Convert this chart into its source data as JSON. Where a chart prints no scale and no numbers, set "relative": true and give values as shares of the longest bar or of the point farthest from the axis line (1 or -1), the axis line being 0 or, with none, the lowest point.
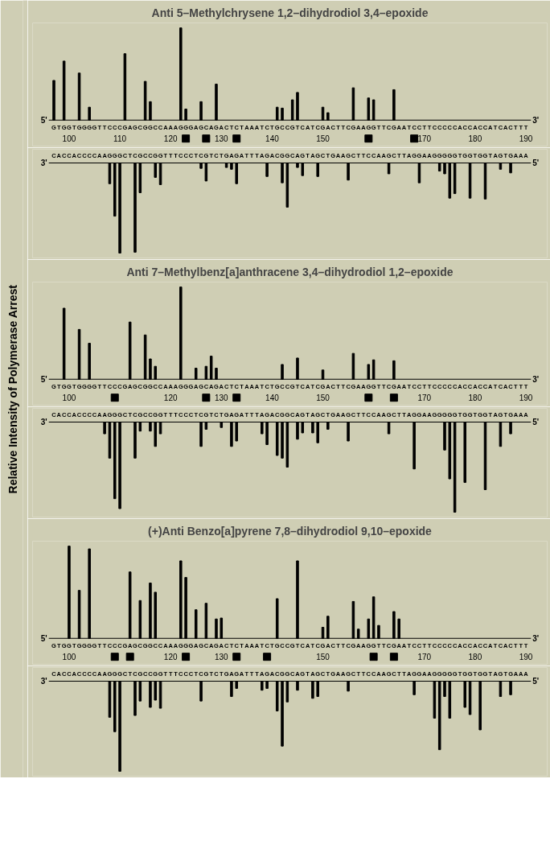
{
  "chart_data": [
    {
      "type": "bar",
      "title": "Anti 5–Methylchrysene 1,2–dihydrodiol 3,4–epoxide",
      "relative": true,
      "grid": false,
      "tick_labels": "x",
      "xlim": [
        96,
        191
      ],
      "xticks": [
        100,
        110,
        120,
        130,
        140,
        150,
        170,
        180,
        190
      ],
      "annotations": [
        "5'",
        "GTGGTGGGGTTCCCGAGCGGCCAAAGGGAGCAGACTCTAAATCTGCCGTCATCGACTTCGAAGGTTCGAATCCTTCCCCCACCACCATCACTTT",
        "3'"
      ],
      "series": [
        {
          "color": "#000000",
          "x": [
            97,
            99,
            102,
            104,
            111,
            115,
            116,
            122,
            123,
            126,
            129,
            141,
            142,
            144,
            145,
            150,
            151,
            156,
            159,
            160,
            164
          ],
          "values": [
            0.43,
            0.64,
            0.51,
            0.14,
            0.72,
            0.42,
            0.2,
            1,
            0.12,
            0.2,
            0.39,
            0.14,
            0.13,
            0.22,
            0.3,
            0.14,
            0.08,
            0.35,
            0.24,
            0.22,
            0.33
          ]
        },
        {
          "type": "scatter",
          "marker": "square",
          "color": "#000000",
          "x": [
            123,
            127,
            133,
            159,
            168
          ],
          "values": [
            -0.2,
            -0.2,
            -0.2,
            -0.2,
            -0.2
          ]
        }
      ]
    },
    {
      "type": "bar",
      "relative": true,
      "grid": false,
      "tick_labels": false,
      "xlim": [
        96,
        191
      ],
      "annotations": [
        "3'",
        "CACCACCCCAAGGGCTCGCCGGTTTCCCTCGTCTGAGATTTAGACGGCAGTAGCTGAAGCTTCCAAGCTTAGGAAGGGGGTGGTGGTAGTGAAA",
        "5'"
      ],
      "series": [
        {
          "color": "#000000",
          "x": [
            108,
            109,
            110,
            113,
            114,
            117,
            118,
            126,
            127,
            131,
            132,
            133,
            139,
            142,
            143,
            145,
            146,
            149,
            155,
            163,
            169,
            173,
            174,
            175,
            176,
            179,
            182,
            185,
            187
          ],
          "values": [
            -0.23,
            -0.59,
            -1,
            -0.99,
            -0.33,
            -0.16,
            -0.24,
            -0.06,
            -0.2,
            -0.05,
            -0.07,
            -0.23,
            -0.15,
            -0.22,
            -0.49,
            -0.05,
            -0.14,
            -0.15,
            -0.19,
            -0.12,
            -0.22,
            -0.09,
            -0.12,
            -0.39,
            -0.34,
            -0.39,
            -0.4,
            -0.07,
            -0.11
          ]
        }
      ]
    },
    {
      "type": "bar",
      "title": "Anti 7–Methylbenz[a]anthracene 3,4–dihydrodiol 1,2–epoxide",
      "ylabel": "Relative Intensity of Polymerase Arrest",
      "relative": true,
      "grid": false,
      "tick_labels": "x",
      "xlim": [
        96,
        191
      ],
      "xticks": [
        100,
        120,
        130,
        140,
        150,
        170,
        180,
        190
      ],
      "annotations": [
        "5'",
        "GTGGTGGGGTTCCCGAGCGGCCAAAGGGAGCAGACTCTAAATCTGCCGTCATCGACTTCGAAGGTTCGAATCCTTCCCCCACCACCATCACTTT",
        "3'"
      ],
      "series": [
        {
          "color": "#000000",
          "x": [
            99,
            102,
            104,
            112,
            115,
            116,
            117,
            122,
            125,
            127,
            128,
            129,
            142,
            145,
            150,
            156,
            159,
            160,
            164
          ],
          "values": [
            0.77,
            0.54,
            0.39,
            0.62,
            0.48,
            0.22,
            0.14,
            1,
            0.12,
            0.14,
            0.25,
            0.12,
            0.16,
            0.23,
            0.1,
            0.28,
            0.16,
            0.21,
            0.2
          ]
        },
        {
          "type": "scatter",
          "marker": "square",
          "color": "#000000",
          "x": [
            109,
            127,
            133,
            159,
            164
          ],
          "values": [
            -0.2,
            -0.2,
            -0.2,
            -0.2,
            -0.2
          ]
        }
      ]
    },
    {
      "type": "bar",
      "relative": true,
      "grid": false,
      "tick_labels": false,
      "xlim": [
        96,
        191
      ],
      "annotations": [
        "3'",
        "CACCACCCCAAGGGCTCGCCGGTTTCCCTCGTCTGAGATTTAGACGGCAGTAGCTGAAGCTTCCAAGCTTAGGAAGGGGGTGGTGGTAGTGAAA",
        "5'"
      ],
      "series": [
        {
          "color": "#000000",
          "x": [
            107,
            108,
            109,
            110,
            113,
            114,
            116,
            117,
            118,
            126,
            127,
            130,
            132,
            133,
            138,
            139,
            141,
            142,
            143,
            145,
            146,
            148,
            149,
            151,
            155,
            163,
            168,
            174,
            175,
            176,
            178,
            182,
            185,
            187
          ],
          "values": [
            -0.13,
            -0.4,
            -0.85,
            -0.96,
            -0.4,
            -0.1,
            -0.1,
            -0.27,
            -0.13,
            -0.27,
            -0.08,
            -0.06,
            -0.27,
            -0.21,
            -0.13,
            -0.25,
            -0.37,
            -0.4,
            -0.5,
            -0.19,
            -0.12,
            -0.12,
            -0.23,
            -0.08,
            -0.21,
            -0.13,
            -0.52,
            -0.31,
            -0.63,
            -1,
            -0.67,
            -0.75,
            -0.27,
            -0.13
          ]
        }
      ]
    },
    {
      "type": "bar",
      "title": "(+)Anti Benzo[a]pyrene 7,8–dihydrodiol 9,10–epoxide",
      "relative": true,
      "grid": false,
      "tick_labels": "x",
      "xlim": [
        96,
        191
      ],
      "xticks": [
        100,
        120,
        130,
        150,
        170,
        180,
        190
      ],
      "annotations": [
        "5'",
        "GTGGTGGGGTTCCCGAGCGGCCAAAGGGAGCAGACTCTAAATCTGCCGTCATCGACTTCGAAGGTTCGAATCCTTCCCCCACCACCATCACTTT",
        "3'"
      ],
      "series": [
        {
          "color": "#000000",
          "x": [
            100,
            102,
            104,
            112,
            114,
            116,
            117,
            122,
            123,
            125,
            127,
            129,
            130,
            141,
            145,
            150,
            151,
            156,
            157,
            159,
            160,
            161,
            164,
            165
          ],
          "values": [
            1,
            0.52,
            0.97,
            0.72,
            0.41,
            0.6,
            0.5,
            0.84,
            0.66,
            0.31,
            0.38,
            0.21,
            0.22,
            0.43,
            0.84,
            0.12,
            0.24,
            0.4,
            0.1,
            0.21,
            0.45,
            0.14,
            0.29,
            0.21
          ]
        },
        {
          "type": "scatter",
          "marker": "square",
          "color": "#000000",
          "x": [
            109,
            112,
            123,
            133,
            139,
            160,
            164
          ],
          "values": [
            -0.2,
            -0.2,
            -0.2,
            -0.2,
            -0.2,
            -0.2,
            -0.2
          ]
        }
      ]
    },
    {
      "type": "bar",
      "relative": true,
      "grid": false,
      "tick_labels": false,
      "xlim": [
        96,
        191
      ],
      "annotations": [
        "3'",
        "CACCACCCCAAGGGCTCGCCGGTTTCCCTCGTCTGAGATTTAGACGGCAGTAGCTGAAGCTTCCAAGCTTAGGAAGGGGGTGGTGGTAGTGAAA",
        "5'"
      ],
      "series": [
        {
          "color": "#000000",
          "x": [
            108,
            109,
            110,
            113,
            114,
            116,
            117,
            118,
            126,
            132,
            133,
            138,
            139,
            141,
            142,
            143,
            145,
            148,
            149,
            155,
            168,
            172,
            173,
            174,
            175,
            178,
            179,
            181,
            185,
            187
          ],
          "values": [
            -0.4,
            -0.56,
            -1,
            -0.38,
            -0.22,
            -0.29,
            -0.21,
            -0.3,
            -0.22,
            -0.17,
            -0.08,
            -0.1,
            -0.08,
            -0.33,
            -0.72,
            -0.23,
            -0.1,
            -0.19,
            -0.17,
            -0.11,
            -0.15,
            -0.41,
            -0.76,
            -0.17,
            -0.41,
            -0.29,
            -0.37,
            -0.54,
            -0.17,
            -0.15
          ]
        }
      ]
    }
  ]
}
